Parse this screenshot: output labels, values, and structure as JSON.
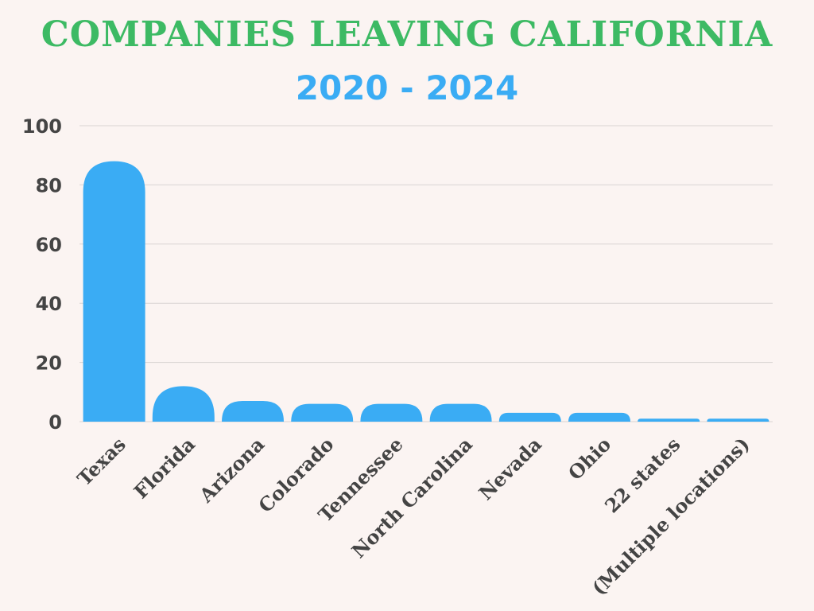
{
  "title": "COMPANIES LEAVING CALIFORNIA",
  "subtitle": "2020 - 2024",
  "colors": {
    "background": "#fbf4f2",
    "title": "#3dba64",
    "subtitle": "#3aacf4",
    "bar": "#3aacf4",
    "grid": "#d9d4d3",
    "tick_text": "#444444"
  },
  "chart_data": {
    "type": "bar",
    "title": "COMPANIES LEAVING CALIFORNIA",
    "subtitle": "2020 - 2024",
    "xlabel": "",
    "ylabel": "",
    "categories": [
      "Texas",
      "Florida",
      "Arizona",
      "Colorado",
      "Tennessee",
      "North Carolina",
      "Nevada",
      "Ohio",
      "22 states",
      "(Multiple locations)"
    ],
    "values": [
      88,
      12,
      7,
      6,
      6,
      6,
      3,
      3,
      1,
      1
    ],
    "ylim": [
      0,
      100
    ],
    "yticks": [
      0,
      20,
      40,
      60,
      80,
      100
    ],
    "grid": true,
    "legend": "none"
  }
}
